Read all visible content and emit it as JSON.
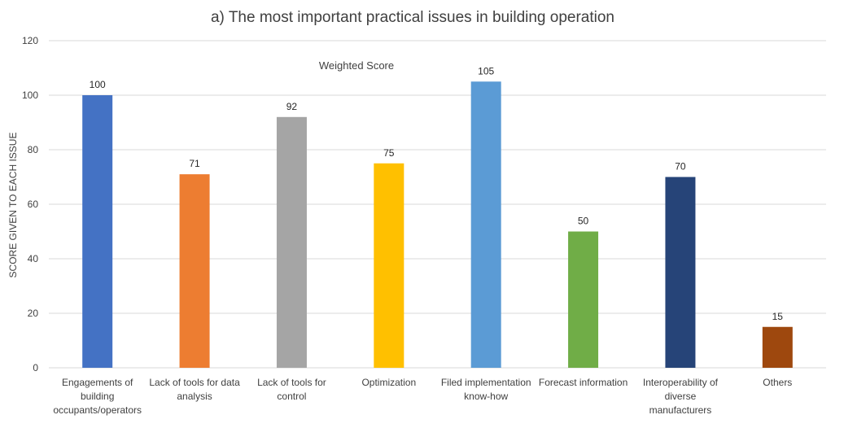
{
  "chart_data": {
    "type": "bar",
    "title": "a) The most important practical issues in building operation",
    "subtitle": "Weighted Score",
    "ylabel": "SCORE GIVEN TO EACH ISSUE",
    "xlabel": "",
    "ylim": [
      0,
      120
    ],
    "yticks": [
      0,
      20,
      40,
      60,
      80,
      100,
      120
    ],
    "grid": true,
    "legend": "none",
    "categories": [
      "Engagements of building occupants/operators",
      "Lack of tools for data analysis",
      "Lack of tools for control",
      "Optimization",
      "Filed implementation know-how",
      "Forecast information",
      "Interoperability of diverse manufacturers",
      "Others"
    ],
    "category_lines": [
      [
        "Engagements of",
        "building",
        "occupants/operators"
      ],
      [
        "Lack of tools for data",
        "analysis"
      ],
      [
        "Lack of tools for",
        "control"
      ],
      [
        "Optimization"
      ],
      [
        "Filed implementation",
        "know-how"
      ],
      [
        "Forecast information"
      ],
      [
        "Interoperability of",
        "diverse",
        "manufacturers"
      ],
      [
        "Others"
      ]
    ],
    "values": [
      100,
      71,
      92,
      75,
      105,
      50,
      70,
      15
    ],
    "colors": [
      "#4472C4",
      "#ED7D31",
      "#A5A5A5",
      "#FFC000",
      "#5B9BD5",
      "#70AD47",
      "#264478",
      "#9E480E"
    ]
  }
}
